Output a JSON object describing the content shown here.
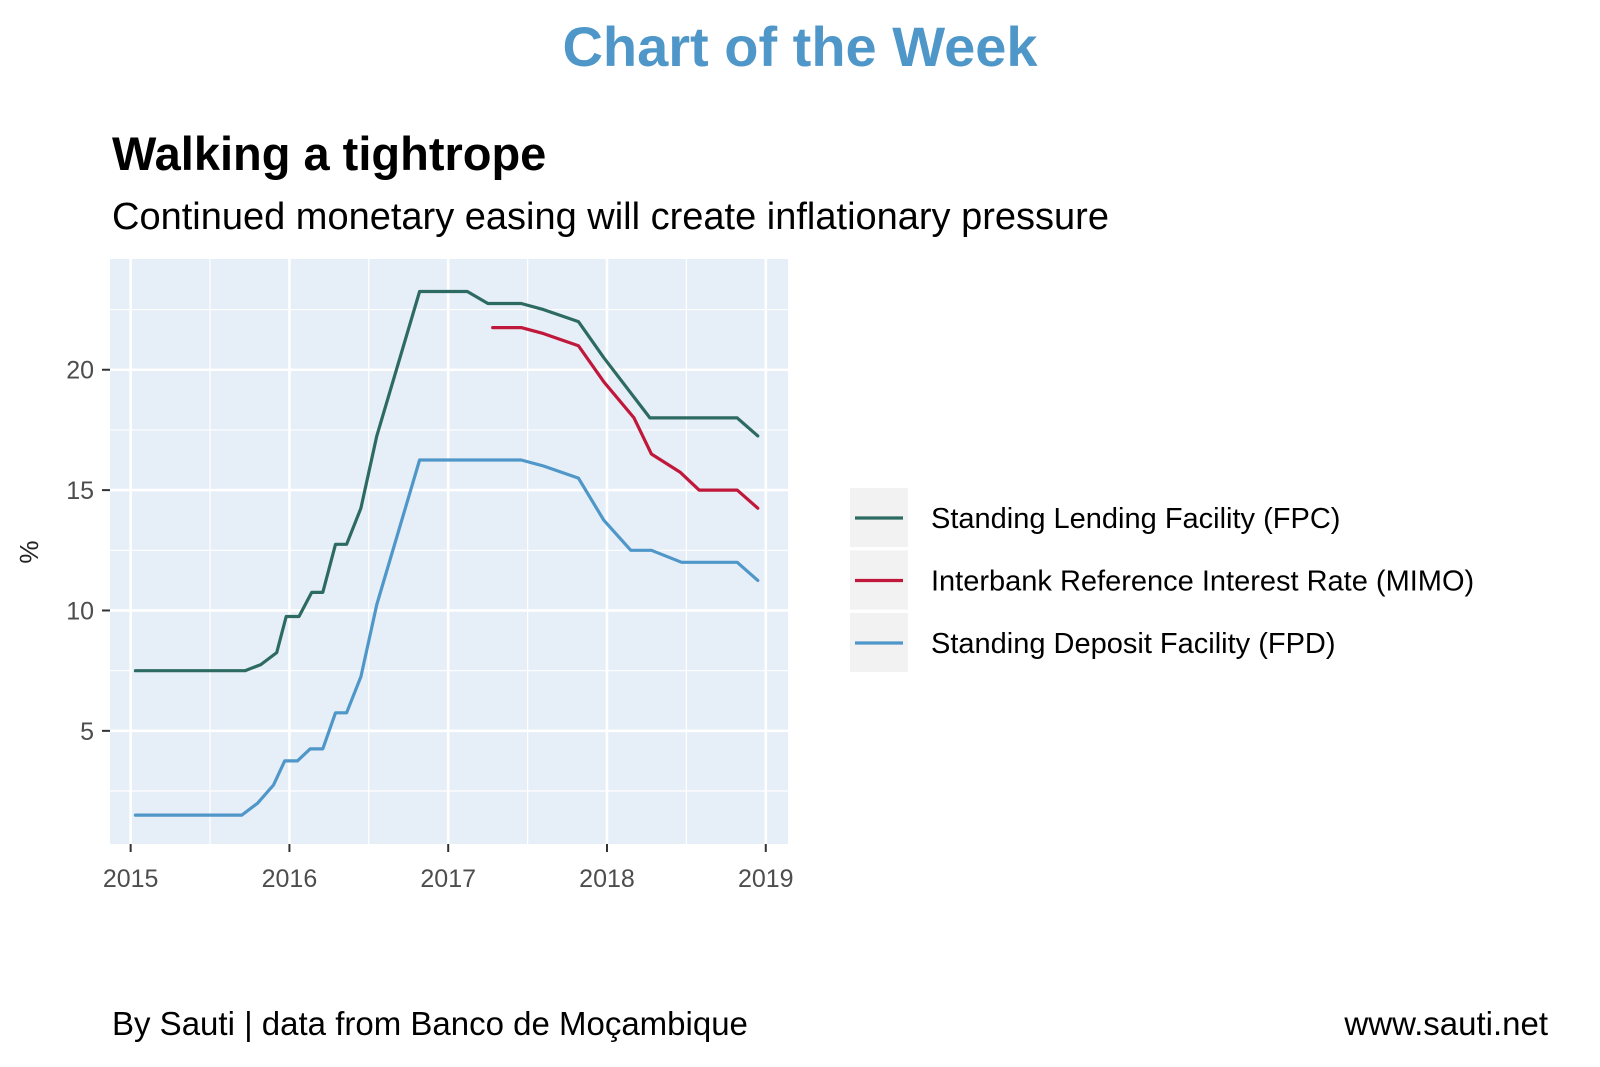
{
  "header": {
    "banner": "Chart of the Week"
  },
  "footer": {
    "source": "By Sauti | data from Banco de Moçambique",
    "website": "www.sauti.net"
  },
  "chart_data": {
    "type": "line",
    "title": "Walking a tightrope",
    "subtitle": "Continued monetary easing will create inflationary pressure",
    "xlabel": "",
    "ylabel": "%",
    "xlim": [
      2014.87,
      2019.14
    ],
    "ylim": [
      0.3,
      24.6
    ],
    "x_ticks": [
      2015,
      2016,
      2017,
      2018,
      2019
    ],
    "y_ticks": [
      5,
      10,
      15,
      20
    ],
    "grid": true,
    "background": "#e6eef7",
    "legend_position": "right",
    "series": [
      {
        "name": "Standing Lending Facility (FPC)",
        "color": "#2d6b62",
        "points": [
          [
            2015.03,
            7.5
          ],
          [
            2015.72,
            7.5
          ],
          [
            2015.82,
            7.75
          ],
          [
            2015.92,
            8.25
          ],
          [
            2015.98,
            9.75
          ],
          [
            2016.06,
            9.75
          ],
          [
            2016.14,
            10.75
          ],
          [
            2016.21,
            10.75
          ],
          [
            2016.29,
            12.75
          ],
          [
            2016.36,
            12.75
          ],
          [
            2016.45,
            14.25
          ],
          [
            2016.55,
            17.25
          ],
          [
            2016.82,
            23.25
          ],
          [
            2017.12,
            23.25
          ],
          [
            2017.25,
            22.75
          ],
          [
            2017.46,
            22.75
          ],
          [
            2017.6,
            22.5
          ],
          [
            2017.82,
            22.0
          ],
          [
            2017.98,
            20.5
          ],
          [
            2018.27,
            18.0
          ],
          [
            2018.82,
            18.0
          ],
          [
            2018.95,
            17.25
          ]
        ]
      },
      {
        "name": "Interbank Reference Interest Rate (MIMO)",
        "color": "#c0183a",
        "points": [
          [
            2017.28,
            21.75
          ],
          [
            2017.46,
            21.75
          ],
          [
            2017.6,
            21.5
          ],
          [
            2017.82,
            21.0
          ],
          [
            2017.98,
            19.5
          ],
          [
            2018.17,
            18.0
          ],
          [
            2018.28,
            16.5
          ],
          [
            2018.46,
            15.75
          ],
          [
            2018.58,
            15.0
          ],
          [
            2018.82,
            15.0
          ],
          [
            2018.95,
            14.25
          ]
        ]
      },
      {
        "name": "Standing Deposit Facility (FPD)",
        "color": "#4f97c9",
        "points": [
          [
            2015.03,
            1.5
          ],
          [
            2015.7,
            1.5
          ],
          [
            2015.8,
            2.0
          ],
          [
            2015.9,
            2.75
          ],
          [
            2015.97,
            3.75
          ],
          [
            2016.05,
            3.75
          ],
          [
            2016.13,
            4.25
          ],
          [
            2016.21,
            4.25
          ],
          [
            2016.29,
            5.75
          ],
          [
            2016.36,
            5.75
          ],
          [
            2016.45,
            7.25
          ],
          [
            2016.55,
            10.25
          ],
          [
            2016.82,
            16.25
          ],
          [
            2017.46,
            16.25
          ],
          [
            2017.6,
            16.0
          ],
          [
            2017.82,
            15.5
          ],
          [
            2017.98,
            13.75
          ],
          [
            2018.15,
            12.5
          ],
          [
            2018.28,
            12.5
          ],
          [
            2018.47,
            12.0
          ],
          [
            2018.82,
            12.0
          ],
          [
            2018.95,
            11.25
          ]
        ]
      }
    ]
  }
}
